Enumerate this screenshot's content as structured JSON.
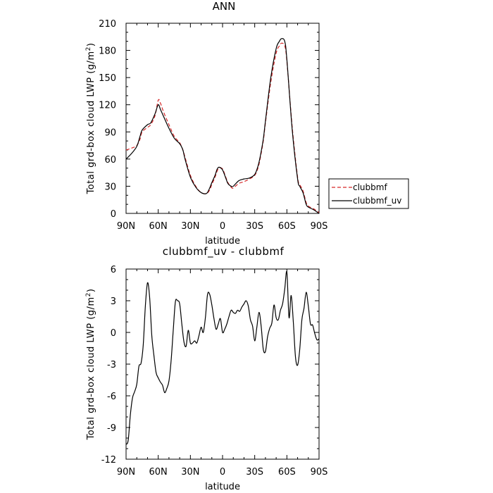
{
  "chart_data": [
    {
      "type": "line",
      "title": "ANN",
      "xlabel": "latitude",
      "ylabel": "Total grd-box cloud LWP",
      "ylabel_unit_prefix": "(g/m",
      "ylabel_unit_sup": "2",
      "ylabel_unit_suffix": ")",
      "x_tick_labels": [
        "90N",
        "60N",
        "30N",
        "0",
        "30S",
        "60S",
        "90S"
      ],
      "x_ticks": [
        90,
        60,
        30,
        0,
        -30,
        -60,
        -90
      ],
      "xlim": [
        90,
        -90
      ],
      "y_ticks": [
        0,
        30,
        60,
        90,
        120,
        150,
        180,
        210
      ],
      "ylim": [
        0,
        210
      ],
      "grid": false,
      "legend_position": "right",
      "series": [
        {
          "name": "clubbmf",
          "color": "#d62728",
          "dash": "dashed",
          "x": [
            90,
            85,
            80,
            77,
            75,
            70,
            67,
            63,
            60,
            58,
            55,
            50,
            45,
            40,
            37,
            35,
            30,
            25,
            20,
            15,
            12,
            10,
            7,
            5,
            3,
            0,
            -3,
            -5,
            -8,
            -10,
            -15,
            -20,
            -25,
            -30,
            -33,
            -35,
            -38,
            -40,
            -45,
            -50,
            -53,
            -55,
            -58,
            -60,
            -65,
            -70,
            -72,
            -75,
            -78,
            -80,
            -85,
            -90
          ],
          "y": [
            70,
            72,
            75,
            82,
            90,
            95,
            98,
            108,
            125,
            122,
            112,
            98,
            85,
            78,
            70,
            62,
            42,
            30,
            23,
            22,
            26,
            32,
            40,
            47,
            50,
            49,
            40,
            34,
            29,
            28,
            33,
            35,
            38,
            42,
            50,
            60,
            80,
            100,
            145,
            177,
            185,
            188,
            185,
            168,
            95,
            40,
            32,
            25,
            12,
            8,
            5,
            1
          ]
        },
        {
          "name": "clubbmf_uv",
          "color": "#000000",
          "dash": "solid",
          "x": [
            90,
            85,
            80,
            77,
            75,
            70,
            67,
            63,
            60,
            58,
            55,
            50,
            45,
            40,
            37,
            35,
            30,
            25,
            20,
            15,
            12,
            10,
            7,
            5,
            3,
            0,
            -3,
            -5,
            -8,
            -10,
            -15,
            -20,
            -25,
            -30,
            -33,
            -35,
            -38,
            -40,
            -45,
            -50,
            -53,
            -55,
            -58,
            -60,
            -65,
            -70,
            -72,
            -75,
            -78,
            -80,
            -85,
            -90
          ],
          "y": [
            60,
            66,
            74,
            85,
            92,
            98,
            100,
            110,
            120,
            115,
            107,
            94,
            83,
            77,
            70,
            60,
            40,
            29,
            23,
            22,
            28,
            34,
            42,
            49,
            51,
            48,
            39,
            33,
            30,
            30,
            36,
            38,
            39,
            43,
            52,
            62,
            82,
            102,
            150,
            182,
            190,
            193,
            190,
            170,
            92,
            38,
            30,
            23,
            10,
            7,
            4,
            0
          ]
        }
      ]
    },
    {
      "type": "line",
      "title": "clubbmf_uv - clubbmf",
      "xlabel": "latitude",
      "ylabel": "Total grd-box cloud LWP",
      "ylabel_unit_prefix": "(g/m",
      "ylabel_unit_sup": "2",
      "ylabel_unit_suffix": ")",
      "x_tick_labels": [
        "90N",
        "60N",
        "30N",
        "0",
        "30S",
        "60S",
        "90S"
      ],
      "x_ticks": [
        90,
        60,
        30,
        0,
        -30,
        -60,
        -90
      ],
      "xlim": [
        90,
        -90
      ],
      "y_ticks": [
        -12,
        -9,
        -6,
        -3,
        0,
        3,
        6
      ],
      "ylim": [
        -12,
        6
      ],
      "grid": false,
      "series": [
        {
          "color": "#000000",
          "dash": "solid",
          "x": [
            90,
            88,
            86,
            84,
            82,
            80,
            78,
            76,
            74,
            72,
            70,
            68,
            66,
            64,
            62,
            60,
            58,
            56,
            54,
            52,
            50,
            48,
            46,
            44,
            42,
            40,
            38,
            36,
            34,
            32,
            30,
            28,
            26,
            24,
            22,
            20,
            18,
            16,
            14,
            12,
            10,
            8,
            6,
            4,
            2,
            0,
            -2,
            -4,
            -6,
            -8,
            -10,
            -12,
            -14,
            -16,
            -18,
            -20,
            -22,
            -24,
            -26,
            -28,
            -30,
            -32,
            -34,
            -36,
            -38,
            -40,
            -42,
            -44,
            -46,
            -48,
            -50,
            -52,
            -54,
            -56,
            -58,
            -60,
            -62,
            -64,
            -66,
            -68,
            -70,
            -72,
            -74,
            -76,
            -78,
            -80,
            -82,
            -84,
            -86,
            -88,
            -90
          ],
          "y": [
            -10.6,
            -10.2,
            -7.8,
            -6.2,
            -5.6,
            -4.9,
            -3.2,
            -2.9,
            -1.2,
            2.5,
            4.7,
            3.3,
            -0.3,
            -2.2,
            -3.8,
            -4.3,
            -4.7,
            -5.0,
            -5.7,
            -5.3,
            -4.6,
            -2.7,
            0.2,
            2.9,
            3.0,
            2.7,
            0.8,
            -0.9,
            -1.3,
            0.2,
            -1.0,
            -1.0,
            -0.8,
            -1.0,
            -0.3,
            0.5,
            0.0,
            1.4,
            3.6,
            3.6,
            2.6,
            1.3,
            0.3,
            0.8,
            1.3,
            0.0,
            0.3,
            0.8,
            1.5,
            2.1,
            1.9,
            1.8,
            2.1,
            2.0,
            2.4,
            2.7,
            3.0,
            2.5,
            1.2,
            0.6,
            -0.8,
            0.5,
            1.9,
            0.6,
            -1.6,
            -1.8,
            -0.4,
            0.4,
            0.9,
            2.6,
            1.4,
            1.2,
            2.1,
            2.7,
            4.1,
            5.7,
            1.4,
            3.5,
            1.0,
            -2.3,
            -3.1,
            -1.6,
            1.2,
            2.3,
            3.8,
            2.5,
            0.8,
            0.7,
            -0.1,
            -0.7,
            -0.6
          ]
        }
      ]
    }
  ]
}
